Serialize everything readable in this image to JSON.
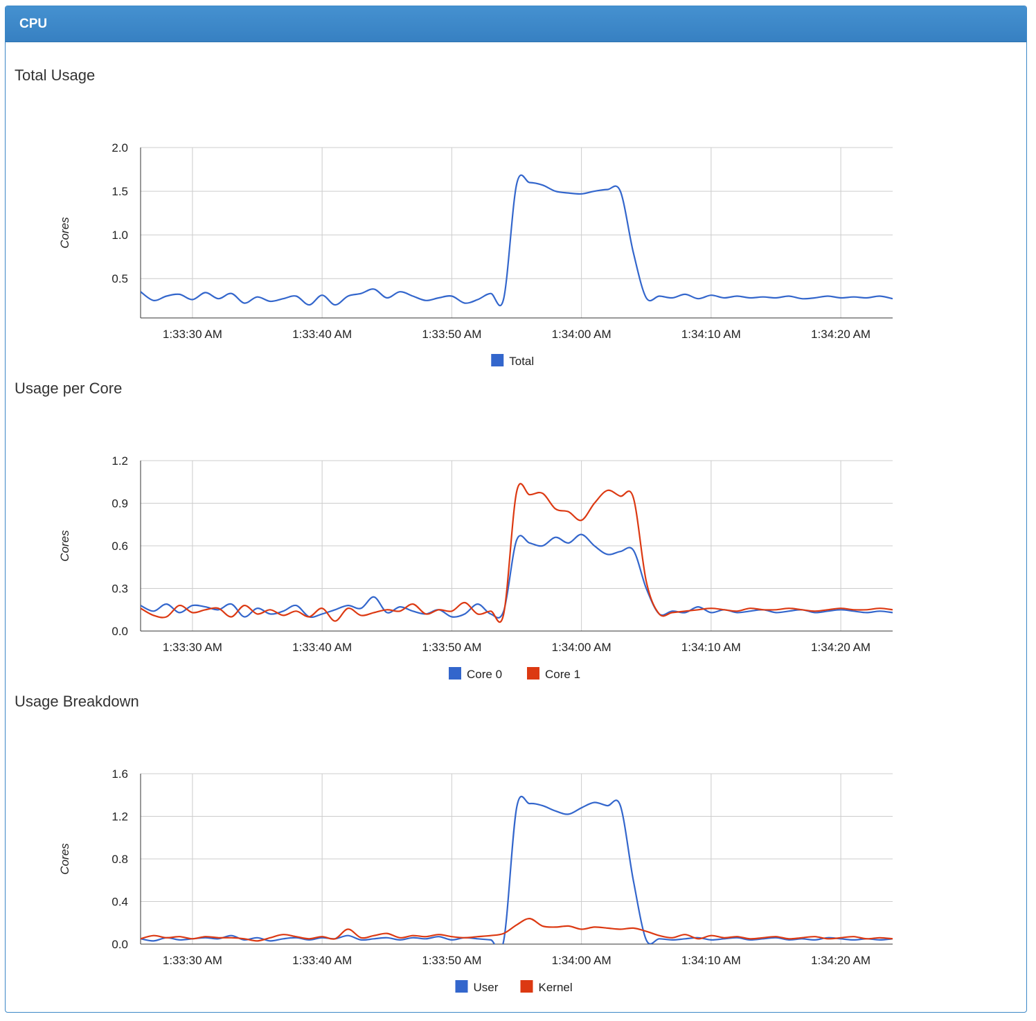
{
  "panel": {
    "title": "CPU"
  },
  "colors": {
    "blue": "#3366cc",
    "red": "#dc3912",
    "grid": "#cccccc",
    "axis": "#333333",
    "header": "#3b87c6"
  },
  "chart_data": [
    {
      "type": "line",
      "title": "Total Usage",
      "ylabel": "Cores",
      "xlabel": "",
      "x_ticks": [
        "1:33:30 AM",
        "1:33:40 AM",
        "1:33:50 AM",
        "1:34:00 AM",
        "1:34:10 AM",
        "1:34:20 AM"
      ],
      "ylim": [
        0.05,
        2.0
      ],
      "y_ticks": [
        "0.5",
        "1.0",
        "1.5",
        "2.0"
      ],
      "y_tick_values": [
        0.5,
        1.0,
        1.5,
        2.0
      ],
      "grid": true,
      "legend": "bottom",
      "x": [
        "1:33:26 AM",
        "1:33:27 AM",
        "1:33:28 AM",
        "1:33:29 AM",
        "1:33:30 AM",
        "1:33:31 AM",
        "1:33:32 AM",
        "1:33:33 AM",
        "1:33:34 AM",
        "1:33:35 AM",
        "1:33:36 AM",
        "1:33:37 AM",
        "1:33:38 AM",
        "1:33:39 AM",
        "1:33:40 AM",
        "1:33:41 AM",
        "1:33:42 AM",
        "1:33:43 AM",
        "1:33:44 AM",
        "1:33:45 AM",
        "1:33:46 AM",
        "1:33:47 AM",
        "1:33:48 AM",
        "1:33:49 AM",
        "1:33:50 AM",
        "1:33:51 AM",
        "1:33:52 AM",
        "1:33:53 AM",
        "1:33:54 AM",
        "1:33:55 AM",
        "1:33:56 AM",
        "1:33:57 AM",
        "1:33:58 AM",
        "1:33:59 AM",
        "1:34:00 AM",
        "1:34:01 AM",
        "1:34:02 AM",
        "1:34:03 AM",
        "1:34:04 AM",
        "1:34:05 AM",
        "1:34:06 AM",
        "1:34:07 AM",
        "1:34:08 AM",
        "1:34:09 AM",
        "1:34:10 AM",
        "1:34:11 AM",
        "1:34:12 AM",
        "1:34:13 AM",
        "1:34:14 AM",
        "1:34:15 AM",
        "1:34:16 AM",
        "1:34:17 AM",
        "1:34:18 AM",
        "1:34:19 AM",
        "1:34:20 AM",
        "1:34:21 AM",
        "1:34:22 AM",
        "1:34:23 AM",
        "1:34:24 AM"
      ],
      "series": [
        {
          "name": "Total",
          "color": "#3366cc",
          "values": [
            0.35,
            0.25,
            0.3,
            0.32,
            0.26,
            0.34,
            0.27,
            0.33,
            0.22,
            0.29,
            0.24,
            0.27,
            0.3,
            0.2,
            0.31,
            0.2,
            0.3,
            0.33,
            0.38,
            0.28,
            0.35,
            0.3,
            0.25,
            0.28,
            0.3,
            0.22,
            0.26,
            0.33,
            0.27,
            1.58,
            1.6,
            1.57,
            1.5,
            1.48,
            1.47,
            1.5,
            1.52,
            1.5,
            0.8,
            0.28,
            0.3,
            0.28,
            0.32,
            0.27,
            0.31,
            0.28,
            0.3,
            0.28,
            0.29,
            0.28,
            0.3,
            0.27,
            0.28,
            0.3,
            0.28,
            0.29,
            0.28,
            0.3,
            0.27
          ]
        }
      ]
    },
    {
      "type": "line",
      "title": "Usage per Core",
      "ylabel": "Cores",
      "xlabel": "",
      "x_ticks": [
        "1:33:30 AM",
        "1:33:40 AM",
        "1:33:50 AM",
        "1:34:00 AM",
        "1:34:10 AM",
        "1:34:20 AM"
      ],
      "ylim": [
        0,
        1.2
      ],
      "y_ticks": [
        "0.0",
        "0.3",
        "0.6",
        "0.9",
        "1.2"
      ],
      "y_tick_values": [
        0,
        0.3,
        0.6,
        0.9,
        1.2
      ],
      "grid": true,
      "legend": "bottom",
      "x": [
        "1:33:26 AM",
        "1:33:27 AM",
        "1:33:28 AM",
        "1:33:29 AM",
        "1:33:30 AM",
        "1:33:31 AM",
        "1:33:32 AM",
        "1:33:33 AM",
        "1:33:34 AM",
        "1:33:35 AM",
        "1:33:36 AM",
        "1:33:37 AM",
        "1:33:38 AM",
        "1:33:39 AM",
        "1:33:40 AM",
        "1:33:41 AM",
        "1:33:42 AM",
        "1:33:43 AM",
        "1:33:44 AM",
        "1:33:45 AM",
        "1:33:46 AM",
        "1:33:47 AM",
        "1:33:48 AM",
        "1:33:49 AM",
        "1:33:50 AM",
        "1:33:51 AM",
        "1:33:52 AM",
        "1:33:53 AM",
        "1:33:54 AM",
        "1:33:55 AM",
        "1:33:56 AM",
        "1:33:57 AM",
        "1:33:58 AM",
        "1:33:59 AM",
        "1:34:00 AM",
        "1:34:01 AM",
        "1:34:02 AM",
        "1:34:03 AM",
        "1:34:04 AM",
        "1:34:05 AM",
        "1:34:06 AM",
        "1:34:07 AM",
        "1:34:08 AM",
        "1:34:09 AM",
        "1:34:10 AM",
        "1:34:11 AM",
        "1:34:12 AM",
        "1:34:13 AM",
        "1:34:14 AM",
        "1:34:15 AM",
        "1:34:16 AM",
        "1:34:17 AM",
        "1:34:18 AM",
        "1:34:19 AM",
        "1:34:20 AM",
        "1:34:21 AM",
        "1:34:22 AM",
        "1:34:23 AM",
        "1:34:24 AM"
      ],
      "series": [
        {
          "name": "Core 0",
          "color": "#3366cc",
          "values": [
            0.18,
            0.14,
            0.19,
            0.13,
            0.18,
            0.17,
            0.15,
            0.19,
            0.1,
            0.16,
            0.12,
            0.14,
            0.18,
            0.1,
            0.12,
            0.15,
            0.18,
            0.16,
            0.24,
            0.13,
            0.17,
            0.14,
            0.12,
            0.15,
            0.1,
            0.12,
            0.19,
            0.12,
            0.14,
            0.64,
            0.62,
            0.6,
            0.66,
            0.62,
            0.68,
            0.6,
            0.54,
            0.56,
            0.57,
            0.3,
            0.12,
            0.14,
            0.13,
            0.17,
            0.13,
            0.15,
            0.13,
            0.14,
            0.15,
            0.13,
            0.14,
            0.15,
            0.13,
            0.14,
            0.15,
            0.14,
            0.13,
            0.14,
            0.13
          ]
        },
        {
          "name": "Core 1",
          "color": "#dc3912",
          "values": [
            0.16,
            0.11,
            0.1,
            0.18,
            0.13,
            0.15,
            0.16,
            0.1,
            0.18,
            0.12,
            0.15,
            0.11,
            0.14,
            0.1,
            0.16,
            0.07,
            0.16,
            0.11,
            0.13,
            0.15,
            0.14,
            0.19,
            0.12,
            0.15,
            0.14,
            0.2,
            0.12,
            0.14,
            0.12,
            0.98,
            0.96,
            0.97,
            0.86,
            0.84,
            0.78,
            0.9,
            0.99,
            0.95,
            0.94,
            0.35,
            0.12,
            0.13,
            0.14,
            0.15,
            0.16,
            0.15,
            0.14,
            0.16,
            0.15,
            0.15,
            0.16,
            0.15,
            0.14,
            0.15,
            0.16,
            0.15,
            0.15,
            0.16,
            0.15
          ]
        }
      ]
    },
    {
      "type": "line",
      "title": "Usage Breakdown",
      "ylabel": "Cores",
      "xlabel": "",
      "x_ticks": [
        "1:33:30 AM",
        "1:33:40 AM",
        "1:33:50 AM",
        "1:34:00 AM",
        "1:34:10 AM",
        "1:34:20 AM"
      ],
      "ylim": [
        0,
        1.6
      ],
      "y_ticks": [
        "0.0",
        "0.4",
        "0.8",
        "1.2",
        "1.6"
      ],
      "y_tick_values": [
        0,
        0.4,
        0.8,
        1.2,
        1.6
      ],
      "grid": true,
      "legend": "bottom",
      "x": [
        "1:33:26 AM",
        "1:33:27 AM",
        "1:33:28 AM",
        "1:33:29 AM",
        "1:33:30 AM",
        "1:33:31 AM",
        "1:33:32 AM",
        "1:33:33 AM",
        "1:33:34 AM",
        "1:33:35 AM",
        "1:33:36 AM",
        "1:33:37 AM",
        "1:33:38 AM",
        "1:33:39 AM",
        "1:33:40 AM",
        "1:33:41 AM",
        "1:33:42 AM",
        "1:33:43 AM",
        "1:33:44 AM",
        "1:33:45 AM",
        "1:33:46 AM",
        "1:33:47 AM",
        "1:33:48 AM",
        "1:33:49 AM",
        "1:33:50 AM",
        "1:33:51 AM",
        "1:33:52 AM",
        "1:33:53 AM",
        "1:33:54 AM",
        "1:33:55 AM",
        "1:33:56 AM",
        "1:33:57 AM",
        "1:33:58 AM",
        "1:33:59 AM",
        "1:34:00 AM",
        "1:34:01 AM",
        "1:34:02 AM",
        "1:34:03 AM",
        "1:34:04 AM",
        "1:34:05 AM",
        "1:34:06 AM",
        "1:34:07 AM",
        "1:34:08 AM",
        "1:34:09 AM",
        "1:34:10 AM",
        "1:34:11 AM",
        "1:34:12 AM",
        "1:34:13 AM",
        "1:34:14 AM",
        "1:34:15 AM",
        "1:34:16 AM",
        "1:34:17 AM",
        "1:34:18 AM",
        "1:34:19 AM",
        "1:34:20 AM",
        "1:34:21 AM",
        "1:34:22 AM",
        "1:34:23 AM",
        "1:34:24 AM"
      ],
      "series": [
        {
          "name": "User",
          "color": "#3366cc",
          "values": [
            0.05,
            0.03,
            0.06,
            0.04,
            0.05,
            0.06,
            0.05,
            0.08,
            0.04,
            0.06,
            0.03,
            0.05,
            0.06,
            0.04,
            0.06,
            0.05,
            0.08,
            0.04,
            0.05,
            0.06,
            0.04,
            0.06,
            0.05,
            0.07,
            0.04,
            0.06,
            0.05,
            0.04,
            0.03,
            1.28,
            1.32,
            1.3,
            1.25,
            1.22,
            1.28,
            1.33,
            1.3,
            1.3,
            0.6,
            0.04,
            0.05,
            0.04,
            0.05,
            0.06,
            0.04,
            0.05,
            0.06,
            0.04,
            0.05,
            0.06,
            0.04,
            0.05,
            0.04,
            0.06,
            0.05,
            0.04,
            0.05,
            0.04,
            0.05
          ]
        },
        {
          "name": "Kernel",
          "color": "#dc3912",
          "values": [
            0.05,
            0.08,
            0.06,
            0.07,
            0.05,
            0.07,
            0.06,
            0.06,
            0.05,
            0.03,
            0.06,
            0.09,
            0.07,
            0.05,
            0.07,
            0.05,
            0.14,
            0.06,
            0.08,
            0.1,
            0.06,
            0.08,
            0.07,
            0.09,
            0.07,
            0.06,
            0.07,
            0.08,
            0.1,
            0.18,
            0.24,
            0.17,
            0.16,
            0.17,
            0.14,
            0.16,
            0.15,
            0.14,
            0.15,
            0.12,
            0.08,
            0.06,
            0.09,
            0.05,
            0.08,
            0.06,
            0.07,
            0.05,
            0.06,
            0.07,
            0.05,
            0.06,
            0.07,
            0.05,
            0.06,
            0.07,
            0.05,
            0.06,
            0.05
          ]
        }
      ]
    }
  ]
}
